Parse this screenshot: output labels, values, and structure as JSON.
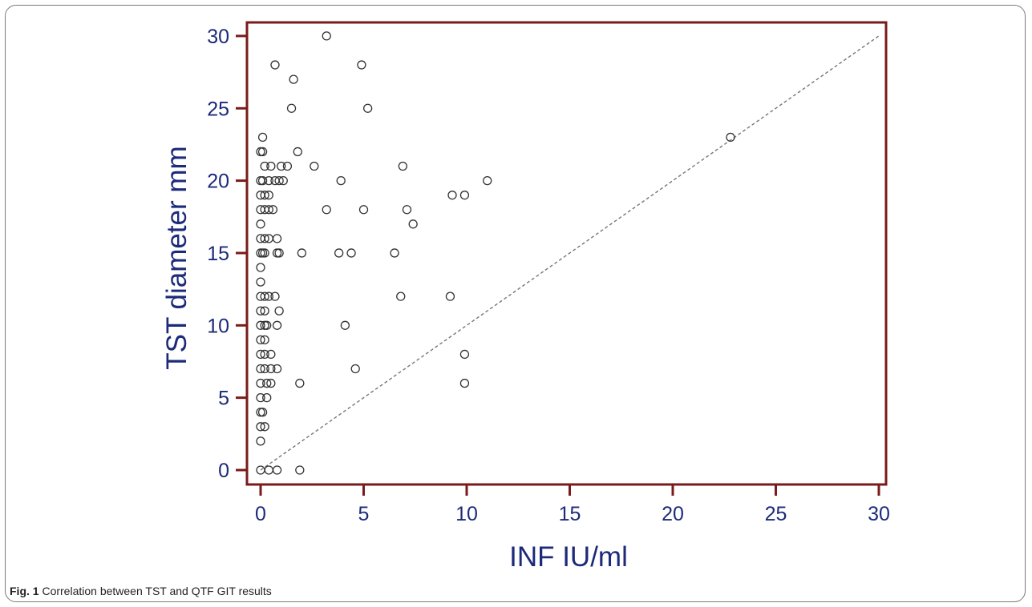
{
  "caption": {
    "label": "Fig. 1",
    "text": "Correlation between TST and QTF GIT results"
  },
  "colors": {
    "frame": "#7b1a1a",
    "axis_text": "#1c2a7a",
    "points": "#333333",
    "reference_line": "#777777"
  },
  "chart_data": {
    "type": "scatter",
    "xlabel": "INF IU/ml",
    "ylabel": "TST diameter mm",
    "xlim": [
      -1,
      31
    ],
    "ylim": [
      -1,
      31
    ],
    "xticks": [
      0,
      5,
      10,
      15,
      20,
      25,
      30
    ],
    "yticks": [
      0,
      5,
      10,
      15,
      20,
      25,
      30
    ],
    "grid": false,
    "marker": "open-circle",
    "reference_line": {
      "style": "dashed",
      "from": [
        0,
        0
      ],
      "to": [
        30,
        30
      ]
    },
    "points": [
      [
        0,
        0
      ],
      [
        0.4,
        0
      ],
      [
        0.8,
        0
      ],
      [
        1.9,
        0
      ],
      [
        0,
        2
      ],
      [
        0,
        3
      ],
      [
        0.2,
        3
      ],
      [
        0,
        4
      ],
      [
        0.1,
        4
      ],
      [
        0,
        5
      ],
      [
        0.3,
        5
      ],
      [
        0,
        6
      ],
      [
        0.3,
        6
      ],
      [
        0.5,
        6
      ],
      [
        1.9,
        6
      ],
      [
        9.9,
        6
      ],
      [
        0,
        7
      ],
      [
        0.2,
        7
      ],
      [
        0.5,
        7
      ],
      [
        0.8,
        7
      ],
      [
        4.6,
        7
      ],
      [
        0,
        8
      ],
      [
        0.2,
        8
      ],
      [
        0.5,
        8
      ],
      [
        9.9,
        8
      ],
      [
        0,
        9
      ],
      [
        0.2,
        9
      ],
      [
        0,
        10
      ],
      [
        0.2,
        10
      ],
      [
        0.3,
        10
      ],
      [
        0.8,
        10
      ],
      [
        4.1,
        10
      ],
      [
        0,
        11
      ],
      [
        0.2,
        11
      ],
      [
        0.9,
        11
      ],
      [
        0,
        12
      ],
      [
        0.2,
        12
      ],
      [
        0.4,
        12
      ],
      [
        0.7,
        12
      ],
      [
        6.8,
        12
      ],
      [
        9.2,
        12
      ],
      [
        0,
        13
      ],
      [
        0,
        14
      ],
      [
        0,
        15
      ],
      [
        0.1,
        15
      ],
      [
        0.2,
        15
      ],
      [
        0.8,
        15
      ],
      [
        0.9,
        15
      ],
      [
        2.0,
        15
      ],
      [
        3.8,
        15
      ],
      [
        4.4,
        15
      ],
      [
        6.5,
        15
      ],
      [
        0,
        16
      ],
      [
        0.2,
        16
      ],
      [
        0.4,
        16
      ],
      [
        0.8,
        16
      ],
      [
        0,
        17
      ],
      [
        7.4,
        17
      ],
      [
        0,
        18
      ],
      [
        0.2,
        18
      ],
      [
        0.4,
        18
      ],
      [
        0.6,
        18
      ],
      [
        3.2,
        18
      ],
      [
        5.0,
        18
      ],
      [
        7.1,
        18
      ],
      [
        0,
        19
      ],
      [
        0.2,
        19
      ],
      [
        0.4,
        19
      ],
      [
        9.3,
        19
      ],
      [
        9.9,
        19
      ],
      [
        0,
        20
      ],
      [
        0.1,
        20
      ],
      [
        0.4,
        20
      ],
      [
        0.7,
        20
      ],
      [
        0.9,
        20
      ],
      [
        1.1,
        20
      ],
      [
        3.9,
        20
      ],
      [
        11.0,
        20
      ],
      [
        0.2,
        21
      ],
      [
        0.5,
        21
      ],
      [
        1.0,
        21
      ],
      [
        1.3,
        21
      ],
      [
        2.6,
        21
      ],
      [
        6.9,
        21
      ],
      [
        0,
        22
      ],
      [
        0.1,
        22
      ],
      [
        1.8,
        22
      ],
      [
        0.1,
        23
      ],
      [
        22.8,
        23
      ],
      [
        1.5,
        25
      ],
      [
        5.2,
        25
      ],
      [
        1.6,
        27
      ],
      [
        0.7,
        28
      ],
      [
        4.9,
        28
      ],
      [
        3.2,
        30
      ]
    ]
  }
}
